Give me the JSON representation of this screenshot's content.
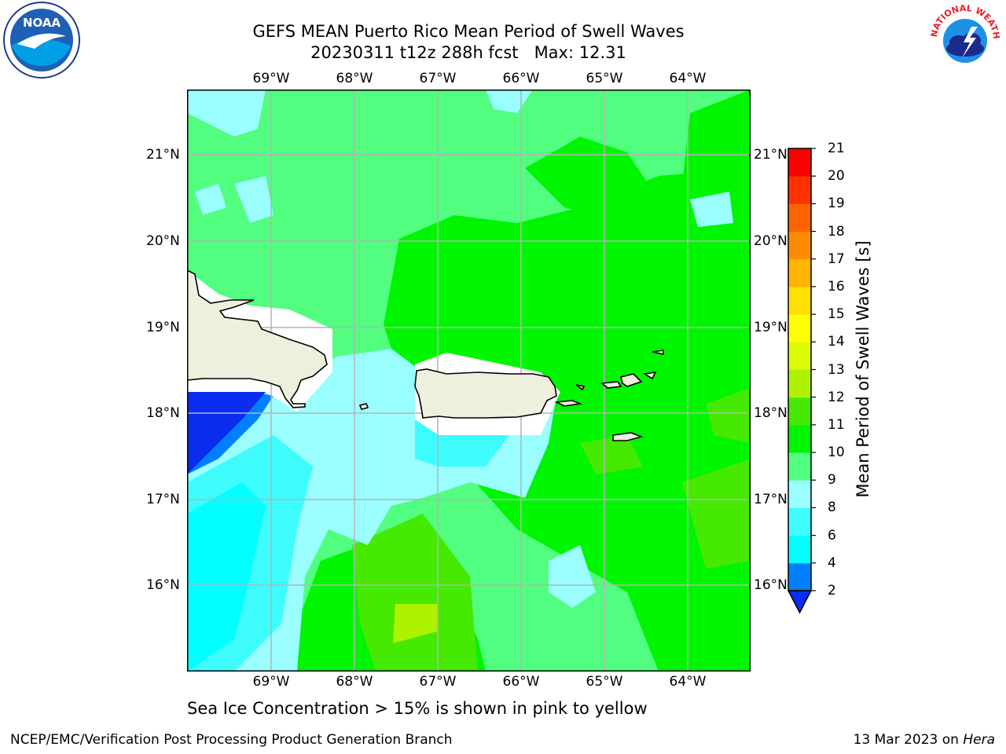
{
  "title_line1": "GEFS MEAN Puerto Rico Mean Period of Swell Waves",
  "title_line2": "20230311 t12z 288h fcst   Max: 12.31",
  "footnote": "Sea Ice Concentration > 15% is shown in pink to yellow",
  "credit_left": "NCEP/EMC/Verification Post Processing Product Generation Branch",
  "credit_date": "13 Mar 2023 on ",
  "credit_host": "Hera",
  "logos": {
    "left": "NOAA",
    "right_text": "NATIONAL WEATHER SERVICE"
  },
  "map": {
    "lon_labels": [
      "69°W",
      "68°W",
      "67°W",
      "66°W",
      "65°W",
      "64°W"
    ],
    "lat_labels": [
      "21°N",
      "20°N",
      "19°N",
      "18°N",
      "17°N",
      "16°N"
    ]
  },
  "colorbar": {
    "label": "Mean Period of Swell Waves [s]",
    "ticks": [
      "2",
      "4",
      "6",
      "8",
      "9",
      "10",
      "11",
      "12",
      "13",
      "14",
      "15",
      "16",
      "17",
      "18",
      "19",
      "20",
      "21"
    ],
    "colors": [
      "#0a2df0",
      "#0080ff",
      "#00ffff",
      "#3ffcfc",
      "#9bfefe",
      "#51fe7f",
      "#00f500",
      "#46ea00",
      "#aff200",
      "#dcfa00",
      "#ffff00",
      "#ffe000",
      "#ffb400",
      "#ff8c00",
      "#ff6400",
      "#ff3200",
      "#ff0000"
    ]
  },
  "chart_data": {
    "type": "heatmap",
    "title": "GEFS MEAN Puerto Rico Mean Period of Swell Waves",
    "xlabel": "",
    "ylabel": "",
    "xlim": [
      -70,
      -63.3
    ],
    "ylim": [
      15,
      21.7
    ],
    "colorbar_range": [
      2,
      21
    ],
    "max_value": 12.31
  }
}
